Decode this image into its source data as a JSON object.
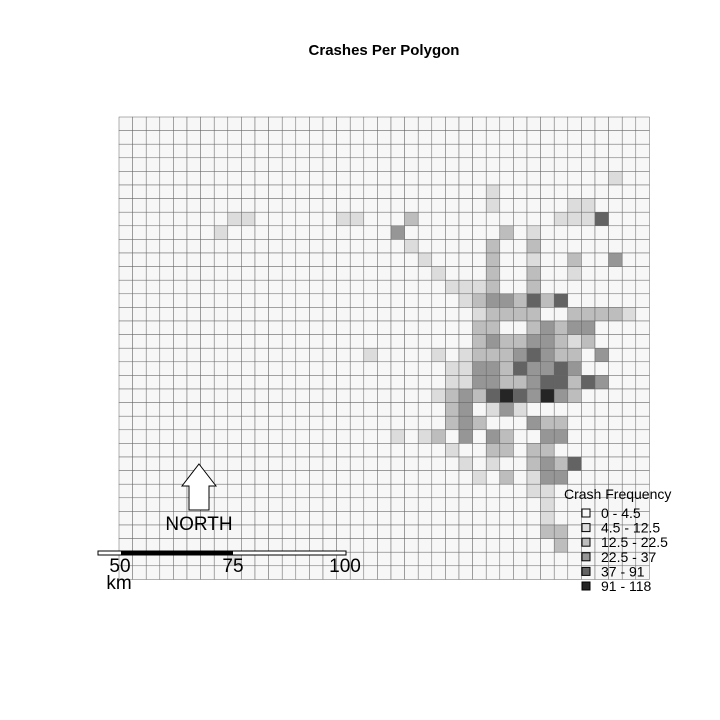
{
  "title": "Crashes Per Polygon",
  "north_arrow": {
    "label": "NORTH"
  },
  "scale_bar": {
    "ticks": [
      "50",
      "75",
      "100"
    ],
    "unit": "km"
  },
  "legend": {
    "title": "Crash Frequency",
    "items": [
      {
        "label": "0 - 4.5",
        "color": "#f7f7f7"
      },
      {
        "label": "4.5 - 12.5",
        "color": "#dcdcdc"
      },
      {
        "label": "12.5 - 22.5",
        "color": "#bdbdbd"
      },
      {
        "label": "22.5 - 37",
        "color": "#969696"
      },
      {
        "label": "37 - 91",
        "color": "#636363"
      },
      {
        "label": "91 - 118",
        "color": "#252525"
      }
    ]
  },
  "grid": {
    "cols": 39,
    "rows": 34,
    "classes": [
      "000000000000000000000000000000000000000",
      "000000000000000000000000000000000000000",
      "000000000000000000000000000000000000000",
      "000000000000000000000000000000000000000",
      "000000000000000000000000000000000000100",
      "000000000000000000000000000100000000000",
      "000000000000000000000000000100000110000",
      "000000000000000011000200000000001114000",
      "000000000000000000003000000020100000000",
      "000000000000000000000100000200200000000",
      "000000000000000000000010000200100200300",
      "000000000000000000000001000200200100000",
      "000000000000000000000000111200200000000",
      "000000000000000000000000012332424000000",
      "000000000000000000000000001222200222210",
      "000000000000000000000000002200232330000",
      "000000000000000000000000002322332120000",
      "000000000000000000000001012223432203000",
      "000000000000000000000000113324334300000",
      "000000000000000000000000113322344243000",
      "000000000000000000000001232454353200000",
      "000000000000000000000000230131000000000",
      "000000000000000000000000232000322000000",
      "000000000000000000000001030320033000000",
      "000000000000000000000000100220220000000",
      "000000000000000000000000010000232400000",
      "000000000000000000000000001020333000000",
      "000000000000000000000000000000120000000",
      "000000000000000000000000000000000000000",
      "000000000000000000000000000000000000000",
      "000000000000000000000000000000000000000",
      "000000000000000000000000000000000000000",
      "000000000000000000000000000000000000000",
      "000000000000000000000000000000000000000"
    ],
    "extra_cells": [
      {
        "row": 8,
        "col": 7,
        "class": 1
      },
      {
        "row": 7,
        "col": 8,
        "class": 1
      },
      {
        "row": 7,
        "col": 9,
        "class": 1
      },
      {
        "row": 17,
        "col": 18,
        "class": 1
      },
      {
        "row": 23,
        "col": 20,
        "class": 1
      },
      {
        "row": 23,
        "col": 22,
        "class": 1
      },
      {
        "row": 23,
        "col": 23,
        "class": 2
      },
      {
        "row": 25,
        "col": 27,
        "class": 1
      },
      {
        "row": 26,
        "col": 30,
        "class": 1
      },
      {
        "row": 27,
        "col": 31,
        "class": 1
      },
      {
        "row": 28,
        "col": 31,
        "class": 1
      },
      {
        "row": 29,
        "col": 31,
        "class": 1
      },
      {
        "row": 30,
        "col": 31,
        "class": 2
      },
      {
        "row": 30,
        "col": 32,
        "class": 2
      },
      {
        "row": 31,
        "col": 32,
        "class": 2
      },
      {
        "row": 32,
        "col": 8,
        "class": 1
      },
      {
        "row": 34,
        "col": 21,
        "class": 2
      }
    ]
  }
}
